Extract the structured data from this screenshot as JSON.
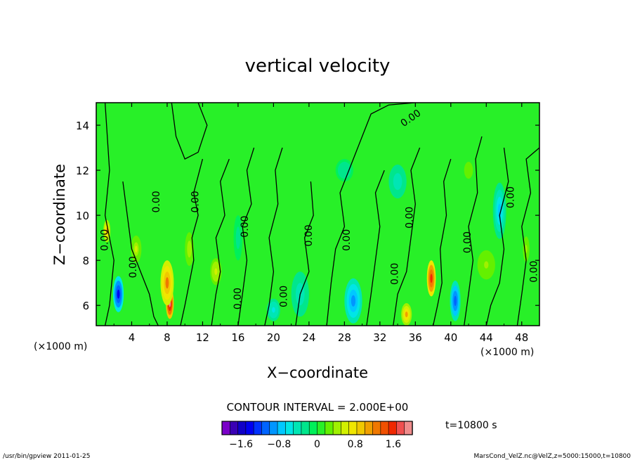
{
  "chart_data": {
    "type": "heatmap",
    "title": "vertical velocity",
    "xlabel": "X−coordinate",
    "ylabel": "Z−coordinate",
    "x_unit_left": "(×1000 m)",
    "x_unit_right": "(×1000 m)",
    "xlim": [
      0,
      50
    ],
    "ylim": [
      5.1,
      15
    ],
    "x_ticks": [
      4,
      8,
      12,
      16,
      20,
      24,
      28,
      32,
      36,
      40,
      44,
      48
    ],
    "y_ticks": [
      6,
      8,
      10,
      12,
      14
    ],
    "contour_label": "0.00",
    "contour_interval_text": "CONTOUR INTERVAL = 2.000E+00",
    "time_text": "t=10800 s",
    "colorbar": {
      "range": [
        -2.0,
        2.0
      ],
      "tick_values": [
        -1.6,
        -0.8,
        0,
        0.8,
        1.6
      ],
      "tick_labels": [
        "−1.6",
        "−0.8",
        "0",
        "0.8",
        "1.6"
      ],
      "colors": [
        "#7a00c8",
        "#3a00b4",
        "#1000c8",
        "#0000f0",
        "#0032ff",
        "#0064ff",
        "#0096ff",
        "#00c8ff",
        "#00e6e6",
        "#00e6b4",
        "#00e68c",
        "#00f05a",
        "#28f028",
        "#64f000",
        "#a0f000",
        "#d2f000",
        "#f0e600",
        "#f0c800",
        "#f0a000",
        "#f07800",
        "#f05000",
        "#f02800",
        "#f05050",
        "#f08c8c"
      ]
    },
    "features": [
      {
        "x": 8.3,
        "z": 6.1,
        "w": 0.9,
        "h": 1.4,
        "value": 2.0
      },
      {
        "x": 8.0,
        "z": 7.0,
        "w": 1.5,
        "h": 2.0,
        "value": 1.2
      },
      {
        "x": 2.5,
        "z": 6.5,
        "w": 1.2,
        "h": 1.6,
        "value": -1.4
      },
      {
        "x": 1.2,
        "z": 9.3,
        "w": 0.8,
        "h": 1.0,
        "value": 1.0
      },
      {
        "x": 37.8,
        "z": 7.2,
        "w": 1.0,
        "h": 1.6,
        "value": 1.6
      },
      {
        "x": 40.5,
        "z": 6.2,
        "w": 1.2,
        "h": 1.8,
        "value": -1.1
      },
      {
        "x": 35.0,
        "z": 5.6,
        "w": 1.2,
        "h": 1.0,
        "value": 1.0
      },
      {
        "x": 29.0,
        "z": 6.2,
        "w": 2.0,
        "h": 2.0,
        "value": -0.9
      },
      {
        "x": 45.5,
        "z": 10.2,
        "w": 1.5,
        "h": 2.5,
        "value": -0.7
      },
      {
        "x": 20.0,
        "z": 5.8,
        "w": 1.5,
        "h": 1.0,
        "value": -0.6
      },
      {
        "x": 13.5,
        "z": 7.5,
        "w": 1.3,
        "h": 1.2,
        "value": 0.6
      },
      {
        "x": 23.0,
        "z": 6.5,
        "w": 2.0,
        "h": 2.0,
        "value": -0.5
      },
      {
        "x": 34.0,
        "z": 11.5,
        "w": 2.0,
        "h": 1.5,
        "value": -0.45
      },
      {
        "x": 28.0,
        "z": 12.0,
        "w": 2.0,
        "h": 1.0,
        "value": -0.3
      },
      {
        "x": 44.0,
        "z": 7.8,
        "w": 2.0,
        "h": 1.3,
        "value": 0.4
      },
      {
        "x": 16.0,
        "z": 9.0,
        "w": 1.0,
        "h": 2.0,
        "value": -0.25
      },
      {
        "x": 10.5,
        "z": 8.5,
        "w": 1.0,
        "h": 1.5,
        "value": 0.45
      },
      {
        "x": 48.5,
        "z": 8.5,
        "w": 1.0,
        "h": 1.5,
        "value": 0.35
      },
      {
        "x": 42.0,
        "z": 12.0,
        "w": 2.0,
        "h": 1.5,
        "value": 0.25
      },
      {
        "x": 12.0,
        "z": 13.0,
        "w": 3.0,
        "h": 1.5,
        "value": 0.12
      },
      {
        "x": 4.5,
        "z": 8.5,
        "w": 1.2,
        "h": 1.2,
        "value": 0.5
      }
    ]
  },
  "footer": {
    "left": "/usr/bin/gpview  2011-01-25",
    "right": "MarsCond_VelZ.nc@VelZ,z=5000:15000,t=10800"
  }
}
